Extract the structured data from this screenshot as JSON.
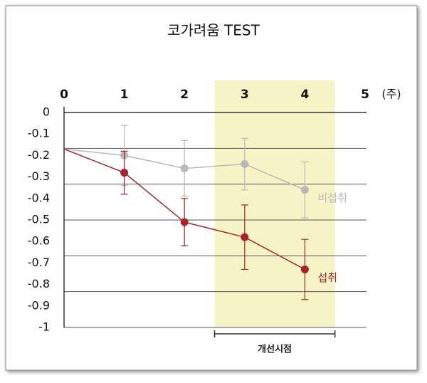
{
  "chart_data": {
    "type": "line",
    "title": "코가려움 TEST",
    "x": [
      0,
      1,
      2,
      3,
      4
    ],
    "xlim": [
      0,
      5
    ],
    "xticks": [
      0,
      1,
      2,
      3,
      4,
      5
    ],
    "x_label": "(주)",
    "ylim": [
      -1,
      0
    ],
    "yticks": [
      0,
      -0.1,
      -0.2,
      -0.3,
      -0.4,
      -0.5,
      -0.6,
      -0.7,
      -0.8,
      -0.9,
      -1
    ],
    "grid_values": [
      -0.167,
      -0.333,
      -0.5,
      -0.667,
      -0.833,
      -1
    ],
    "highlight": {
      "x": [
        2.5,
        4.5
      ],
      "label": "개선시점",
      "color": "#f6f4c6"
    },
    "series": [
      {
        "name": "비섭취",
        "color": "#b8b8b8",
        "values": [
          -0.17,
          -0.2,
          -0.26,
          -0.24,
          -0.36
        ],
        "errors": [
          null,
          0.14,
          0.13,
          0.12,
          0.13
        ]
      },
      {
        "name": "섭취",
        "color": "#a3242c",
        "values": [
          -0.17,
          -0.28,
          -0.51,
          -0.58,
          -0.73
        ],
        "errors": [
          null,
          0.1,
          0.11,
          0.15,
          0.14
        ]
      }
    ]
  }
}
